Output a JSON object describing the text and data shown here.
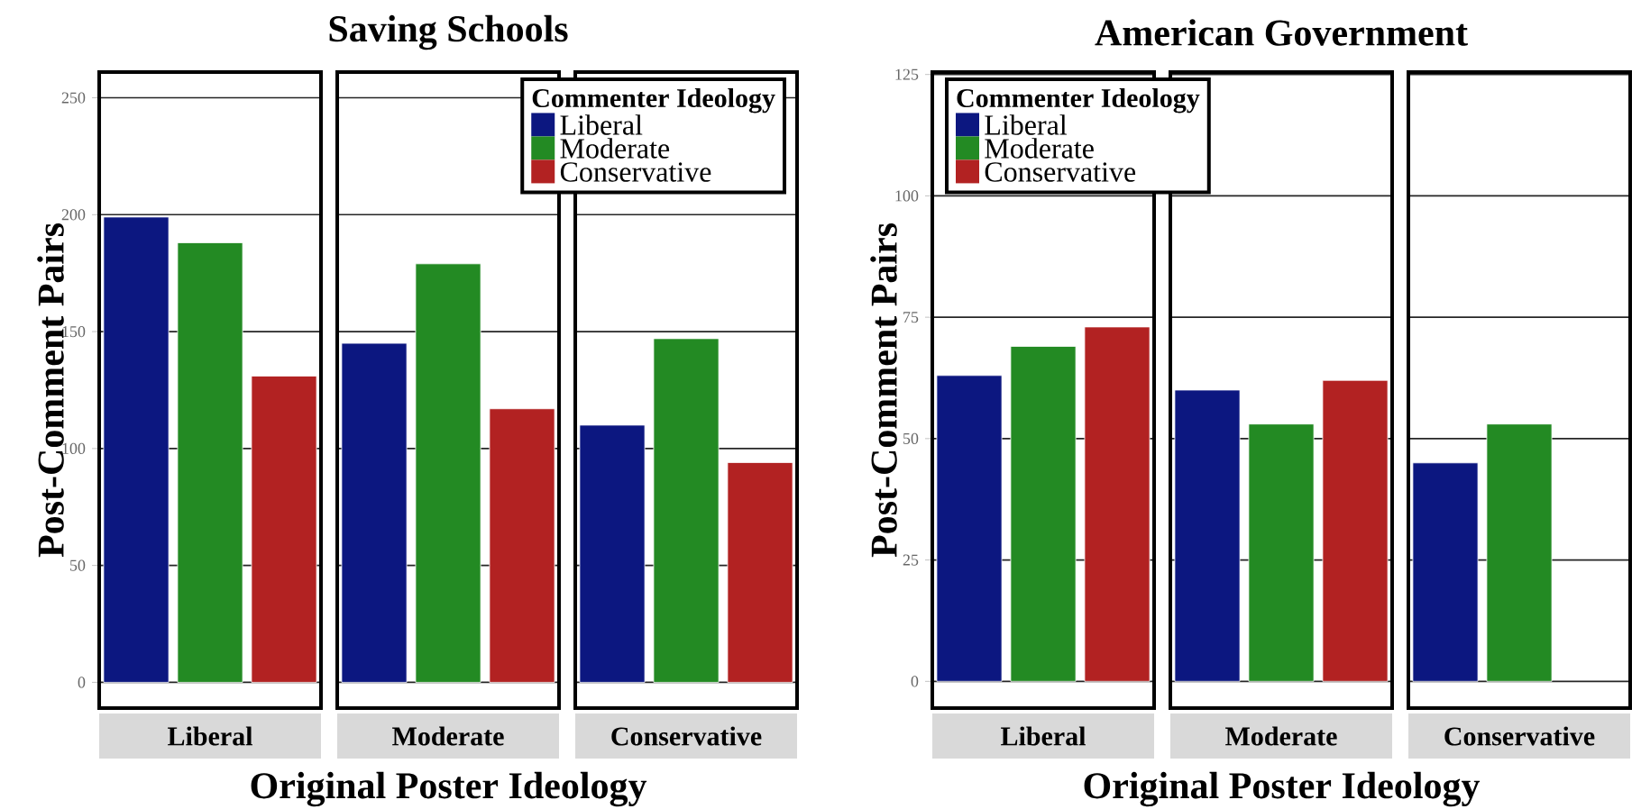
{
  "chart_data": [
    {
      "type": "bar",
      "title": "Saving Schools",
      "xlabel": "Original Poster Ideology",
      "ylabel": "Post-Comment Pairs",
      "legend_title": "Commenter Ideology",
      "categories": [
        "Liberal",
        "Moderate",
        "Conservative"
      ],
      "series": [
        {
          "name": "Liberal",
          "color": "#0c1780",
          "values": [
            199,
            145,
            110
          ]
        },
        {
          "name": "Moderate",
          "color": "#238a23",
          "values": [
            188,
            179,
            147
          ]
        },
        {
          "name": "Conservative",
          "color": "#b22222",
          "values": [
            131,
            117,
            94
          ]
        }
      ],
      "ylim": [
        -11,
        261
      ],
      "yticks": [
        0,
        50,
        100,
        150,
        200,
        250
      ],
      "grid": "y",
      "legend": "top right"
    },
    {
      "type": "bar",
      "title": "American Government",
      "xlabel": "Original Poster Ideology",
      "ylabel": "Post-Comment Pairs",
      "legend_title": "Commenter Ideology",
      "categories": [
        "Liberal",
        "Moderate",
        "Conservative"
      ],
      "series": [
        {
          "name": "Liberal",
          "color": "#0c1780",
          "values": [
            63,
            60,
            45
          ]
        },
        {
          "name": "Moderate",
          "color": "#238a23",
          "values": [
            69,
            53,
            53
          ]
        },
        {
          "name": "Conservative",
          "color": "#b22222",
          "values": [
            73,
            62,
            null
          ]
        }
      ],
      "ylim": [
        -5.5,
        125.5
      ],
      "yticks": [
        0,
        25,
        50,
        75,
        100,
        125
      ],
      "grid": "y",
      "legend": "top left"
    }
  ]
}
